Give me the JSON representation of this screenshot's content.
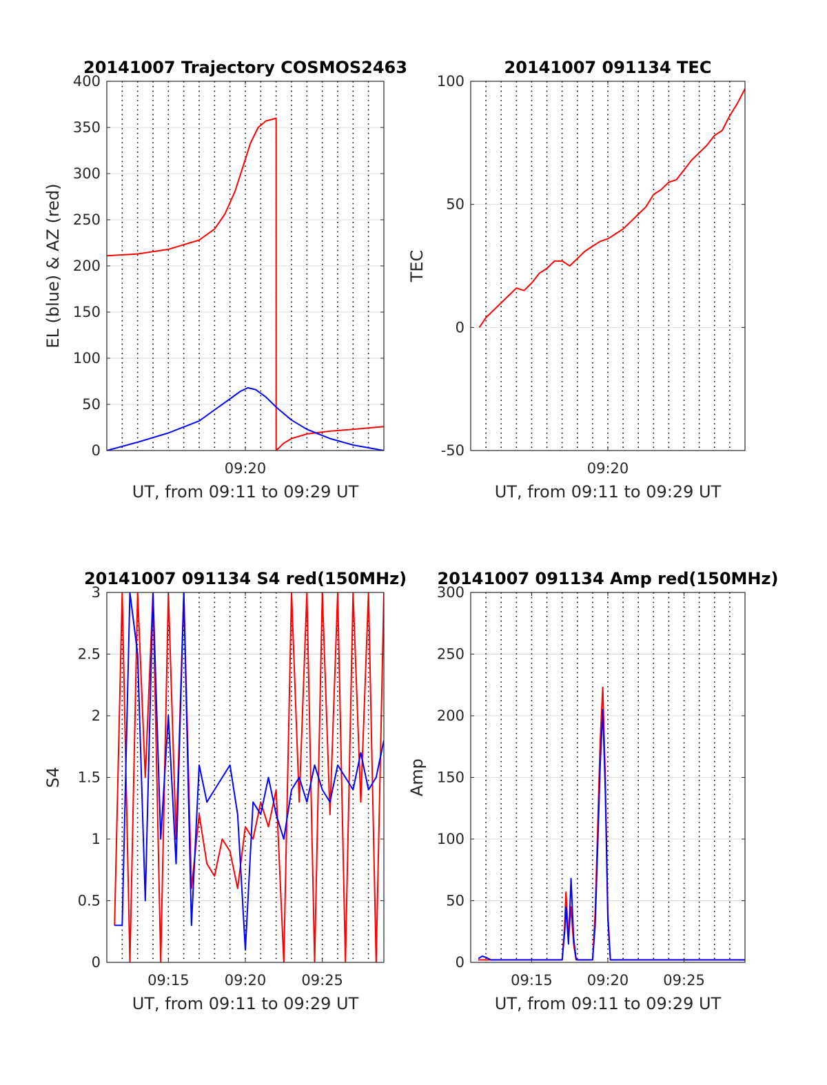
{
  "figure": {
    "time_axis_label": "UT, from 09:11 to 09:29 UT"
  },
  "colors": {
    "red": "#ff0000",
    "blue": "#0000ff",
    "grid": "#dcdcdc",
    "axis": "#262626"
  },
  "chart_data": [
    {
      "type": "line",
      "title": "20141007 Trajectory COSMOS2463",
      "ylabel": "EL (blue) & AZ (red)",
      "xlabel": "UT, from 09:11 to 09:29 UT",
      "xlim": [
        "09:11",
        "09:29"
      ],
      "xticks": [
        "09:20"
      ],
      "ylim": [
        0,
        400
      ],
      "yticks": [
        0,
        50,
        100,
        150,
        200,
        250,
        300,
        350,
        400
      ],
      "vertical_dotted_grid_every_minutes": 1,
      "series": [
        {
          "color": "red",
          "x": [
            "09:11:00",
            "09:13:00",
            "09:15:00",
            "09:17:00",
            "09:18:00",
            "09:18:40",
            "09:19:20",
            "09:19:50",
            "09:20:20",
            "09:20:50",
            "09:21:20",
            "09:22:00",
            "09:22:00",
            "09:22:30",
            "09:23:00",
            "09:24:00",
            "09:25:30",
            "09:27:00",
            "09:29:00"
          ],
          "y": [
            211,
            213,
            218,
            228,
            240,
            256,
            281,
            307,
            333,
            350,
            357,
            360,
            0,
            8,
            13,
            18,
            21,
            23,
            26
          ]
        },
        {
          "color": "blue",
          "x": [
            "09:11:00",
            "09:13:00",
            "09:15:00",
            "09:17:00",
            "09:18:00",
            "09:19:00",
            "09:19:40",
            "09:20:10",
            "09:20:40",
            "09:21:20",
            "09:22:00",
            "09:23:00",
            "09:24:00",
            "09:25:30",
            "09:27:00",
            "09:29:00"
          ],
          "y": [
            0,
            9,
            19,
            32,
            44,
            56,
            64,
            68,
            66,
            58,
            47,
            33,
            23,
            13,
            6,
            0
          ]
        }
      ]
    },
    {
      "type": "line",
      "title": "20141007 091134 TEC",
      "ylabel": "TEC",
      "xlabel": "UT, from 09:11 to 09:29 UT",
      "xlim": [
        "09:11",
        "09:29"
      ],
      "xticks": [
        "09:20"
      ],
      "ylim": [
        -50,
        100
      ],
      "yticks": [
        -50,
        0,
        50,
        100
      ],
      "vertical_dotted_grid_every_minutes": 1,
      "series": [
        {
          "color": "red",
          "x": [
            "09:11:34",
            "09:12:00",
            "09:12:30",
            "09:13:00",
            "09:13:30",
            "09:14:00",
            "09:14:30",
            "09:15:00",
            "09:15:30",
            "09:16:00",
            "09:16:30",
            "09:17:00",
            "09:17:30",
            "09:18:00",
            "09:18:30",
            "09:19:00",
            "09:19:30",
            "09:20:00",
            "09:20:30",
            "09:21:00",
            "09:21:30",
            "09:22:00",
            "09:22:30",
            "09:23:00",
            "09:23:30",
            "09:24:00",
            "09:24:30",
            "09:25:00",
            "09:25:30",
            "09:26:00",
            "09:26:30",
            "09:27:00",
            "09:27:30",
            "09:28:00",
            "09:28:30",
            "09:29:00"
          ],
          "y": [
            0,
            4,
            7,
            10,
            13,
            16,
            15,
            18,
            22,
            24,
            27,
            27,
            25,
            28,
            31,
            33,
            35,
            36,
            38,
            40,
            43,
            46,
            49,
            54,
            56,
            59,
            60,
            64,
            68,
            71,
            74,
            78,
            80,
            86,
            91,
            97
          ]
        }
      ]
    },
    {
      "type": "line",
      "title": "20141007 091134 S4 red(150MHz)",
      "ylabel": "S4",
      "xlabel": "UT, from 09:11 to 09:29 UT",
      "xlim": [
        "09:11",
        "09:29"
      ],
      "xticks": [
        "09:15",
        "09:20",
        "09:25"
      ],
      "ylim": [
        0,
        3
      ],
      "yticks": [
        0,
        0.5,
        1,
        1.5,
        2,
        2.5,
        3
      ],
      "vertical_dotted_grid_every_minutes": 1,
      "series": [
        {
          "color": "red",
          "x": [
            "09:11:30",
            "09:12:00",
            "09:12:30",
            "09:13:00",
            "09:13:30",
            "09:14:00",
            "09:14:30",
            "09:15:00",
            "09:15:30",
            "09:16:00",
            "09:16:30",
            "09:17:00",
            "09:17:30",
            "09:18:00",
            "09:18:30",
            "09:19:00",
            "09:19:30",
            "09:20:00",
            "09:20:30",
            "09:21:00",
            "09:21:30",
            "09:22:00",
            "09:22:30",
            "09:23:00",
            "09:23:30",
            "09:24:00",
            "09:24:30",
            "09:25:00",
            "09:25:30",
            "09:26:00",
            "09:26:30",
            "09:27:00",
            "09:27:30",
            "09:28:00",
            "09:28:30",
            "09:29:00"
          ],
          "y": [
            0.3,
            3,
            0,
            3,
            1.5,
            3,
            0,
            3,
            1,
            3,
            0.6,
            1.2,
            0.8,
            0.7,
            1.0,
            0.9,
            0.6,
            1.1,
            1.0,
            1.3,
            1.1,
            1.4,
            0,
            3,
            1.3,
            3,
            0,
            3,
            1.2,
            3,
            0,
            3,
            1.3,
            3,
            0,
            3
          ]
        },
        {
          "color": "blue",
          "x": [
            "09:11:30",
            "09:12:00",
            "09:12:30",
            "09:13:00",
            "09:13:30",
            "09:14:00",
            "09:14:30",
            "09:15:00",
            "09:15:30",
            "09:16:00",
            "09:16:30",
            "09:17:00",
            "09:17:30",
            "09:18:00",
            "09:18:30",
            "09:19:00",
            "09:19:30",
            "09:20:00",
            "09:20:30",
            "09:21:00",
            "09:21:30",
            "09:22:00",
            "09:22:30",
            "09:23:00",
            "09:23:30",
            "09:24:00",
            "09:24:30",
            "09:25:00",
            "09:25:30",
            "09:26:00",
            "09:26:30",
            "09:27:00",
            "09:27:30",
            "09:28:00",
            "09:28:30",
            "09:29:00"
          ],
          "y": [
            0.3,
            0.3,
            3,
            2.5,
            0.5,
            3,
            1.0,
            2.0,
            0.8,
            3,
            0.3,
            1.6,
            1.3,
            1.4,
            1.5,
            1.6,
            1.2,
            0.1,
            1.3,
            1.2,
            1.5,
            1.2,
            1.0,
            1.4,
            1.5,
            1.3,
            1.6,
            1.4,
            1.3,
            1.6,
            1.5,
            1.4,
            1.7,
            1.4,
            1.5,
            1.8
          ]
        }
      ]
    },
    {
      "type": "line",
      "title": "20141007 091134 Amp red(150MHz)",
      "ylabel": "Amp",
      "xlabel": "UT, from 09:11 to 09:29 UT",
      "xlim": [
        "09:11",
        "09:29"
      ],
      "xticks": [
        "09:15",
        "09:20",
        "09:25"
      ],
      "ylim": [
        0,
        300
      ],
      "yticks": [
        0,
        50,
        100,
        150,
        200,
        250,
        300
      ],
      "vertical_dotted_grid_every_minutes": 1,
      "series": [
        {
          "color": "red",
          "x": [
            "09:11:30",
            "09:17:00",
            "09:17:10",
            "09:17:15",
            "09:17:25",
            "09:17:35",
            "09:17:45",
            "09:17:55",
            "09:18:00",
            "09:19:00",
            "09:19:10",
            "09:19:20",
            "09:19:30",
            "09:19:40",
            "09:19:50",
            "09:20:00",
            "09:20:10",
            "09:21:00",
            "09:29:00"
          ],
          "y": [
            2,
            2,
            30,
            57,
            20,
            45,
            15,
            2,
            2,
            2,
            40,
            110,
            180,
            223,
            150,
            40,
            2,
            2,
            2
          ]
        },
        {
          "color": "blue",
          "x": [
            "09:11:30",
            "09:11:45",
            "09:12:00",
            "09:12:20",
            "09:17:00",
            "09:17:10",
            "09:17:15",
            "09:17:25",
            "09:17:35",
            "09:17:45",
            "09:17:55",
            "09:18:00",
            "09:19:00",
            "09:19:10",
            "09:19:20",
            "09:19:30",
            "09:19:40",
            "09:19:50",
            "09:20:00",
            "09:20:10",
            "09:21:00",
            "09:29:00"
          ],
          "y": [
            3,
            5,
            4,
            2,
            2,
            25,
            45,
            15,
            68,
            20,
            3,
            2,
            2,
            30,
            95,
            160,
            205,
            140,
            35,
            2,
            2,
            2
          ]
        }
      ]
    }
  ]
}
